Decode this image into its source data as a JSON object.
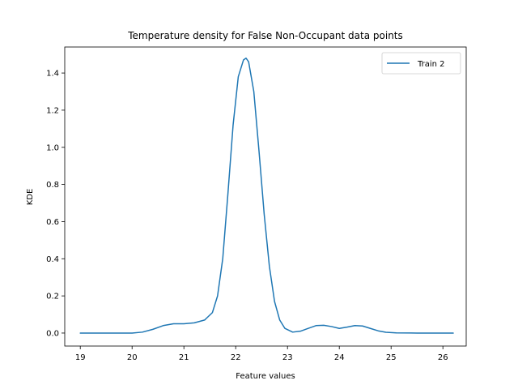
{
  "chart_data": {
    "type": "line",
    "title": "Temperature density for False Non-Occupant data points",
    "xlabel": "Feature values",
    "ylabel": "KDE",
    "xlim": [
      18.7,
      26.45
    ],
    "ylim": [
      -0.07,
      1.54
    ],
    "xticks": [
      19,
      20,
      21,
      22,
      23,
      24,
      25,
      26
    ],
    "yticks": [
      0.0,
      0.2,
      0.4,
      0.6,
      0.8,
      1.0,
      1.2,
      1.4
    ],
    "ytick_labels": [
      "0.0",
      "0.2",
      "0.4",
      "0.6",
      "0.8",
      "1.0",
      "1.2",
      "1.4"
    ],
    "grid": false,
    "legend": {
      "position": "top-right"
    },
    "series": [
      {
        "name": "Train 2",
        "color": "#1f77b4",
        "x": [
          19.0,
          19.5,
          20.0,
          20.2,
          20.4,
          20.6,
          20.8,
          21.0,
          21.2,
          21.4,
          21.55,
          21.65,
          21.75,
          21.85,
          21.95,
          22.05,
          22.15,
          22.2,
          22.25,
          22.35,
          22.45,
          22.55,
          22.65,
          22.75,
          22.85,
          22.95,
          23.1,
          23.25,
          23.4,
          23.55,
          23.7,
          23.85,
          24.0,
          24.15,
          24.3,
          24.45,
          24.6,
          24.75,
          24.9,
          25.1,
          25.5,
          26.0,
          26.2
        ],
        "y": [
          0.0,
          0.0,
          0.0,
          0.005,
          0.02,
          0.04,
          0.05,
          0.05,
          0.055,
          0.07,
          0.11,
          0.2,
          0.4,
          0.75,
          1.12,
          1.38,
          1.47,
          1.48,
          1.46,
          1.3,
          0.98,
          0.64,
          0.36,
          0.17,
          0.07,
          0.025,
          0.005,
          0.01,
          0.025,
          0.04,
          0.042,
          0.035,
          0.025,
          0.032,
          0.04,
          0.038,
          0.025,
          0.012,
          0.004,
          0.001,
          0.0,
          0.0,
          0.0
        ]
      }
    ]
  }
}
